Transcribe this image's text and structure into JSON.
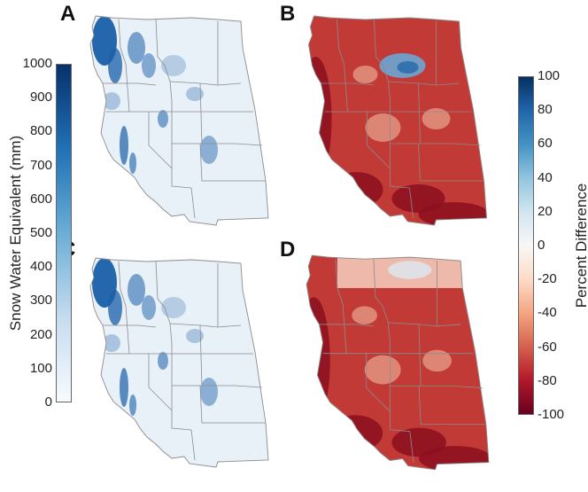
{
  "panels": [
    {
      "letter": "A",
      "field": "swe",
      "hotspot": "none"
    },
    {
      "letter": "B",
      "field": "diff",
      "hotspot": "north-blue"
    },
    {
      "letter": "C",
      "field": "swe",
      "hotspot": "none"
    },
    {
      "letter": "D",
      "field": "diff",
      "hotspot": "north-pale"
    }
  ],
  "colorbar_left": {
    "title": "Snow Water Equivalent (mm)",
    "ticks": [
      "0",
      "100",
      "200",
      "300",
      "400",
      "500",
      "600",
      "700",
      "800",
      "900",
      "1000"
    ],
    "colors": [
      "#f7fbff",
      "#c6dbef",
      "#6baed6",
      "#2171b5",
      "#08306b"
    ]
  },
  "colorbar_right": {
    "title": "Percent Difference",
    "ticks": [
      "-100",
      "-80",
      "-60",
      "-40",
      "-20",
      "0",
      "20",
      "40",
      "60",
      "80",
      "100"
    ],
    "colors": [
      "#67001f",
      "#b2182b",
      "#d6604d",
      "#f4a582",
      "#fddbc7",
      "#f7f7f7",
      "#d1e5f0",
      "#92c5de",
      "#4393c3",
      "#2166ac",
      "#053061"
    ]
  },
  "colors": {
    "boundary": "#8c8c8c",
    "swe_base": "#e8f0f8",
    "swe_high": "#1a5fa8",
    "diff_base": "#c23a36",
    "diff_deep": "#8b0f1e",
    "diff_light": "#f0b9a0"
  }
}
